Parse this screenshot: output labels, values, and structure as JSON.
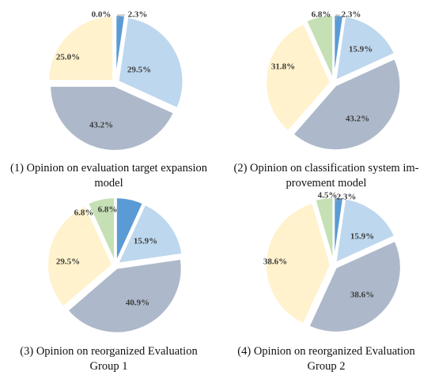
{
  "colors": {
    "blue": "#5b9bd5",
    "light_blue": "#bdd7ee",
    "gray_blue": "#adb9ca",
    "cream": "#fff2cc",
    "green": "#c5e0b4",
    "label": "#3c3c3c",
    "leader": "#a6a6a6"
  },
  "chart_data": [
    {
      "type": "pie",
      "caption": [
        "(1) Opinion on evaluation target expansion",
        "model"
      ],
      "slices": [
        {
          "color": "blue",
          "value": 2.3,
          "label": "2.3%"
        },
        {
          "color": "light_blue",
          "value": 29.5,
          "label": "29.5%"
        },
        {
          "color": "gray_blue",
          "value": 43.2,
          "label": "43.2%"
        },
        {
          "color": "cream",
          "value": 25.0,
          "label": "25.0%"
        },
        {
          "color": "green",
          "value": 0.0,
          "label": "0.0%"
        }
      ]
    },
    {
      "type": "pie",
      "caption": [
        "(2) Opinion on classification system im-",
        "provement model"
      ],
      "slices": [
        {
          "color": "blue",
          "value": 2.3,
          "label": "2.3%"
        },
        {
          "color": "light_blue",
          "value": 15.9,
          "label": "15.9%"
        },
        {
          "color": "gray_blue",
          "value": 43.2,
          "label": "43.2%"
        },
        {
          "color": "cream",
          "value": 31.8,
          "label": "31.8%"
        },
        {
          "color": "green",
          "value": 6.8,
          "label": "6.8%"
        }
      ]
    },
    {
      "type": "pie",
      "caption": [
        "(3) Opinion on reorganized Evaluation",
        "Group 1"
      ],
      "slices": [
        {
          "color": "blue",
          "value": 6.8,
          "label": "6.8%"
        },
        {
          "color": "light_blue",
          "value": 15.9,
          "label": "15.9%"
        },
        {
          "color": "gray_blue",
          "value": 40.9,
          "label": "40.9%"
        },
        {
          "color": "cream",
          "value": 29.5,
          "label": "29.5%"
        },
        {
          "color": "green",
          "value": 6.8,
          "label": "6.8%"
        }
      ]
    },
    {
      "type": "pie",
      "caption": [
        "(4) Opinion on reorganized Evaluation",
        "Group 2"
      ],
      "slices": [
        {
          "color": "blue",
          "value": 2.3,
          "label": "2.3%"
        },
        {
          "color": "light_blue",
          "value": 15.9,
          "label": "15.9%"
        },
        {
          "color": "gray_blue",
          "value": 38.6,
          "label": "38.6%"
        },
        {
          "color": "cream",
          "value": 38.6,
          "label": "38.6%"
        },
        {
          "color": "green",
          "value": 4.5,
          "label": "4.5%"
        }
      ]
    }
  ]
}
